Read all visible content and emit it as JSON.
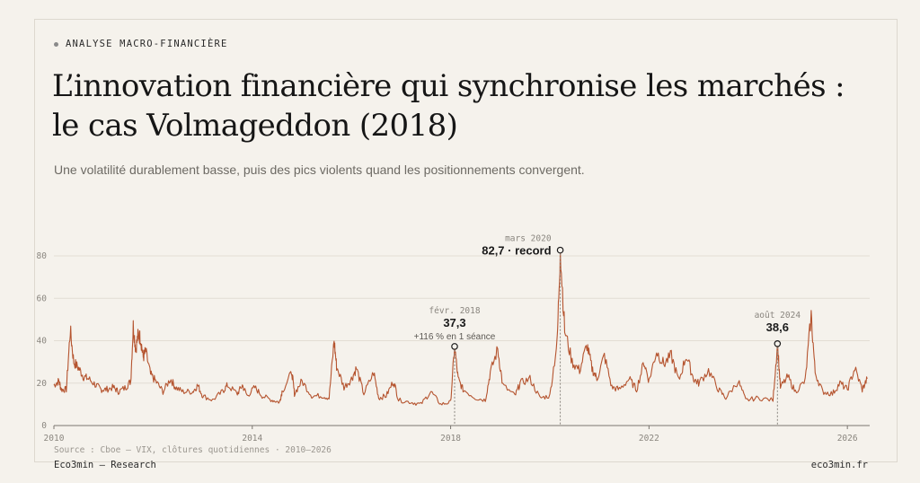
{
  "header": {
    "kicker": "ANALYSE MACRO-FINANCIÈRE",
    "title_line1": "L’innovation financière qui synchronise les marchés :",
    "title_line2": "le cas Volmageddon (2018)",
    "subtitle": "Une volatilité durablement basse, puis des pics violents quand les positionnements convergent."
  },
  "footer": {
    "source": "Source : Cboe — VIX, clôtures quotidiennes · 2010–2026",
    "brand": "Eco3min — Research",
    "site": "eco3min.fr"
  },
  "colors": {
    "line": "#b5542f",
    "grid": "#e2ddd4",
    "axis": "#7a7670",
    "text": "#1a1a1a",
    "muted": "#8a867f"
  },
  "chart_data": {
    "type": "line",
    "series": [
      {
        "values": [
          [
            2010.0,
            19
          ],
          [
            2010.1,
            21
          ],
          [
            2010.15,
            17
          ],
          [
            2010.25,
            17
          ],
          [
            2010.33,
            45
          ],
          [
            2010.4,
            30
          ],
          [
            2010.5,
            27
          ],
          [
            2010.6,
            23
          ],
          [
            2010.7,
            22
          ],
          [
            2010.85,
            19
          ],
          [
            2010.95,
            17
          ],
          [
            2011.05,
            17
          ],
          [
            2011.2,
            18
          ],
          [
            2011.3,
            16
          ],
          [
            2011.45,
            18
          ],
          [
            2011.55,
            21
          ],
          [
            2011.6,
            47
          ],
          [
            2011.65,
            36
          ],
          [
            2011.7,
            43
          ],
          [
            2011.75,
            41
          ],
          [
            2011.8,
            32
          ],
          [
            2011.85,
            35
          ],
          [
            2011.95,
            24
          ],
          [
            2012.05,
            21
          ],
          [
            2012.2,
            16
          ],
          [
            2012.35,
            22
          ],
          [
            2012.45,
            18
          ],
          [
            2012.6,
            16
          ],
          [
            2012.8,
            16
          ],
          [
            2012.9,
            19
          ],
          [
            2013.0,
            14
          ],
          [
            2013.2,
            12
          ],
          [
            2013.4,
            16
          ],
          [
            2013.5,
            19
          ],
          [
            2013.7,
            15
          ],
          [
            2013.8,
            19
          ],
          [
            2013.9,
            14
          ],
          [
            2014.05,
            18
          ],
          [
            2014.2,
            14
          ],
          [
            2014.4,
            12
          ],
          [
            2014.55,
            11
          ],
          [
            2014.6,
            16
          ],
          [
            2014.8,
            25
          ],
          [
            2014.85,
            15
          ],
          [
            2015.0,
            21
          ],
          [
            2015.2,
            14
          ],
          [
            2015.4,
            14
          ],
          [
            2015.55,
            13
          ],
          [
            2015.65,
            40
          ],
          [
            2015.7,
            28
          ],
          [
            2015.85,
            18
          ],
          [
            2016.0,
            22
          ],
          [
            2016.1,
            27
          ],
          [
            2016.25,
            15
          ],
          [
            2016.45,
            25
          ],
          [
            2016.55,
            13
          ],
          [
            2016.7,
            14
          ],
          [
            2016.85,
            21
          ],
          [
            2016.95,
            12
          ],
          [
            2017.2,
            11
          ],
          [
            2017.4,
            10
          ],
          [
            2017.6,
            16
          ],
          [
            2017.8,
            10
          ],
          [
            2018.0,
            11
          ],
          [
            2018.08,
            37.3
          ],
          [
            2018.15,
            22
          ],
          [
            2018.25,
            17
          ],
          [
            2018.5,
            13
          ],
          [
            2018.7,
            12
          ],
          [
            2018.8,
            25
          ],
          [
            2018.95,
            36
          ],
          [
            2019.05,
            19
          ],
          [
            2019.3,
            14
          ],
          [
            2019.4,
            20
          ],
          [
            2019.6,
            22
          ],
          [
            2019.8,
            13
          ],
          [
            2020.0,
            14
          ],
          [
            2020.15,
            40
          ],
          [
            2020.21,
            82.7
          ],
          [
            2020.3,
            45
          ],
          [
            2020.45,
            30
          ],
          [
            2020.6,
            26
          ],
          [
            2020.75,
            38
          ],
          [
            2020.85,
            27
          ],
          [
            2020.95,
            22
          ],
          [
            2021.1,
            33
          ],
          [
            2021.25,
            18
          ],
          [
            2021.4,
            17
          ],
          [
            2021.6,
            22
          ],
          [
            2021.75,
            17
          ],
          [
            2021.9,
            30
          ],
          [
            2022.0,
            21
          ],
          [
            2022.15,
            35
          ],
          [
            2022.3,
            29
          ],
          [
            2022.45,
            33
          ],
          [
            2022.6,
            21
          ],
          [
            2022.75,
            33
          ],
          [
            2022.9,
            22
          ],
          [
            2023.0,
            20
          ],
          [
            2023.2,
            26
          ],
          [
            2023.4,
            17
          ],
          [
            2023.55,
            13
          ],
          [
            2023.8,
            21
          ],
          [
            2023.95,
            12
          ],
          [
            2024.2,
            13
          ],
          [
            2024.5,
            12
          ],
          [
            2024.59,
            38.6
          ],
          [
            2024.65,
            18
          ],
          [
            2024.8,
            23
          ],
          [
            2024.95,
            16
          ],
          [
            2025.15,
            21
          ],
          [
            2025.27,
            52
          ],
          [
            2025.35,
            25
          ],
          [
            2025.5,
            16
          ],
          [
            2025.7,
            15
          ],
          [
            2025.85,
            20
          ],
          [
            2026.0,
            17
          ],
          [
            2026.15,
            27
          ],
          [
            2026.3,
            17
          ],
          [
            2026.4,
            22
          ]
        ]
      }
    ],
    "xlim": [
      2010,
      2026.45
    ],
    "ylim": [
      0,
      80
    ],
    "x_ticks": [
      "2010",
      "2014",
      "2018",
      "2022",
      "2026"
    ],
    "y_ticks": [
      "0",
      "20",
      "40",
      "60",
      "80"
    ],
    "grid": true,
    "annotations": [
      {
        "x": 2018.08,
        "y": 37.3,
        "label_top": "févr. 2018",
        "value": "37,3",
        "note": "+116 % en 1 séance"
      },
      {
        "x": 2020.21,
        "y": 82.7,
        "label_top": "mars 2020",
        "value": "82,7 · record",
        "note": ""
      },
      {
        "x": 2024.59,
        "y": 38.6,
        "label_top": "août 2024",
        "value": "38,6",
        "note": ""
      }
    ]
  }
}
